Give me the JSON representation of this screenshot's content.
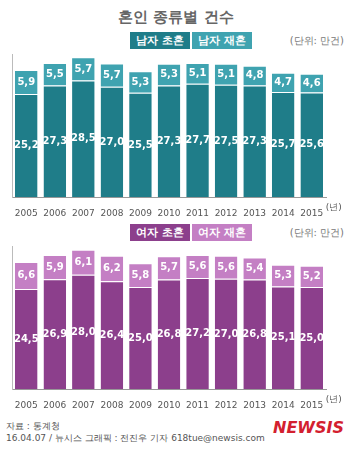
{
  "chart_data": [
    {
      "type": "bar",
      "title": "혼인 종류별 건수",
      "y_label": "(단위: 만건)",
      "x_label": "(년)",
      "categories": [
        "2005",
        "2006",
        "2007",
        "2008",
        "2009",
        "2010",
        "2011",
        "2012",
        "2013",
        "2014",
        "2015"
      ],
      "series": [
        {
          "name": "남자 초혼",
          "color": "#1f7d89",
          "values": [
            25.2,
            27.3,
            28.5,
            27.0,
            25.5,
            27.3,
            27.7,
            27.5,
            27.3,
            25.7,
            25.6
          ],
          "value_labels": [
            "25,2",
            "27,3",
            "28,5",
            "27,0",
            "25,5",
            "27,3",
            "27,7",
            "27,5",
            "27,3",
            "25,7",
            "25,6"
          ]
        },
        {
          "name": "남자 재혼",
          "color": "#3fa3b0",
          "values": [
            5.9,
            5.5,
            5.7,
            5.7,
            5.3,
            5.3,
            5.1,
            5.1,
            4.8,
            4.7,
            4.6
          ],
          "value_labels": [
            "5,9",
            "5,5",
            "5,7",
            "5,7",
            "5,3",
            "5,3",
            "5,1",
            "5,1",
            "4,8",
            "4,7",
            "4,6"
          ]
        }
      ],
      "stacked": true,
      "data_labels": true,
      "tick_labels": "x",
      "grid": false,
      "ylim": [
        0,
        35
      ],
      "yticks": []
    },
    {
      "type": "bar",
      "y_label": "(단위: 만건)",
      "x_label": "(년)",
      "categories": [
        "2005",
        "2006",
        "2007",
        "2008",
        "2009",
        "2010",
        "2011",
        "2012",
        "2013",
        "2014",
        "2015"
      ],
      "series": [
        {
          "name": "여자 초혼",
          "color": "#8c3f8c",
          "values": [
            24.5,
            26.9,
            28.0,
            26.4,
            25.0,
            26.8,
            27.2,
            27.0,
            26.8,
            25.1,
            25.0
          ],
          "value_labels": [
            "24,5",
            "26,9",
            "28,0",
            "26,4",
            "25,0",
            "26,8",
            "27,2",
            "27,0",
            "26,8",
            "25,1",
            "25,0"
          ]
        },
        {
          "name": "여자 재혼",
          "color": "#c47fc4",
          "values": [
            6.6,
            5.9,
            6.1,
            6.2,
            5.8,
            5.7,
            5.6,
            5.6,
            5.4,
            5.3,
            5.2
          ],
          "value_labels": [
            "6,6",
            "5,9",
            "6,1",
            "6,2",
            "5,8",
            "5,7",
            "5,6",
            "5,6",
            "5,4",
            "5,3",
            "5,2"
          ]
        }
      ],
      "stacked": true,
      "data_labels": true,
      "tick_labels": "x",
      "grid": false,
      "ylim": [
        0,
        35
      ],
      "yticks": []
    }
  ],
  "source": "자료 : 통계청",
  "credit": "16.04.07 / 뉴시스 그래픽 : 전진우 기자 618tue@newsis.com",
  "logo": "NEWSIS"
}
